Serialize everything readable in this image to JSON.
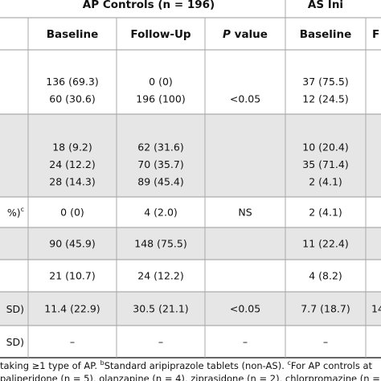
{
  "table": {
    "group_headers": [
      "AP Controls (n = 196)",
      "AS Ini"
    ],
    "columns": [
      "Baseline",
      "Follow-Up",
      {
        "italic": "P",
        "text": " value"
      },
      "Baseline",
      "F"
    ],
    "rows": [
      {
        "lines": [
          [
            "136 (69.3)",
            "0 (0)",
            null,
            "37 (75.5)",
            null
          ],
          [
            "60 (30.6)",
            "196 (100)",
            "<0.05",
            "12 (24.5)",
            null
          ]
        ]
      },
      {
        "lines": [
          [
            "18 (9.2)",
            "62 (31.6)",
            null,
            "10 (20.4)",
            null
          ],
          [
            "24 (12.2)",
            "70 (35.7)",
            null,
            "35 (71.4)",
            null
          ],
          [
            "28 (14.3)",
            "89 (45.4)",
            null,
            "2 (4.1)",
            null
          ]
        ]
      },
      {
        "label": {
          "text": "%)",
          "sup": "c"
        },
        "lines": [
          [
            "0 (0)",
            "4 (2.0)",
            "NS",
            "2 (4.1)",
            null
          ]
        ]
      },
      {
        "lines": [
          [
            "90 (45.9)",
            "148 (75.5)",
            null,
            "11 (22.4)",
            null
          ]
        ]
      },
      {
        "lines": [
          [
            "21 (10.7)",
            "24 (12.2)",
            null,
            "4 (8.2)",
            null
          ]
        ]
      },
      {
        "label": {
          "text": "SD)"
        },
        "lines": [
          [
            "11.4 (22.9)",
            "30.5 (21.1)",
            "<0.05",
            "7.7 (18.7)",
            "14"
          ]
        ]
      },
      {
        "label": {
          "text": "SD)"
        },
        "lines": [
          [
            "–",
            "–",
            "–",
            "–",
            null
          ]
        ]
      }
    ],
    "footnotes": [
      [
        {
          "text": "taking ≥1 type of AP. "
        },
        {
          "sup": "b"
        },
        {
          "text": "Standard aripiprazole tablets (non-AS). "
        },
        {
          "sup": "c"
        },
        {
          "text": "For AP controls at"
        }
      ],
      [
        {
          "text": "paliperidone (n = 5), olanzapine (n = 4), ziprasidone (n = 2), chlorpromazine (n ="
        }
      ]
    ]
  }
}
